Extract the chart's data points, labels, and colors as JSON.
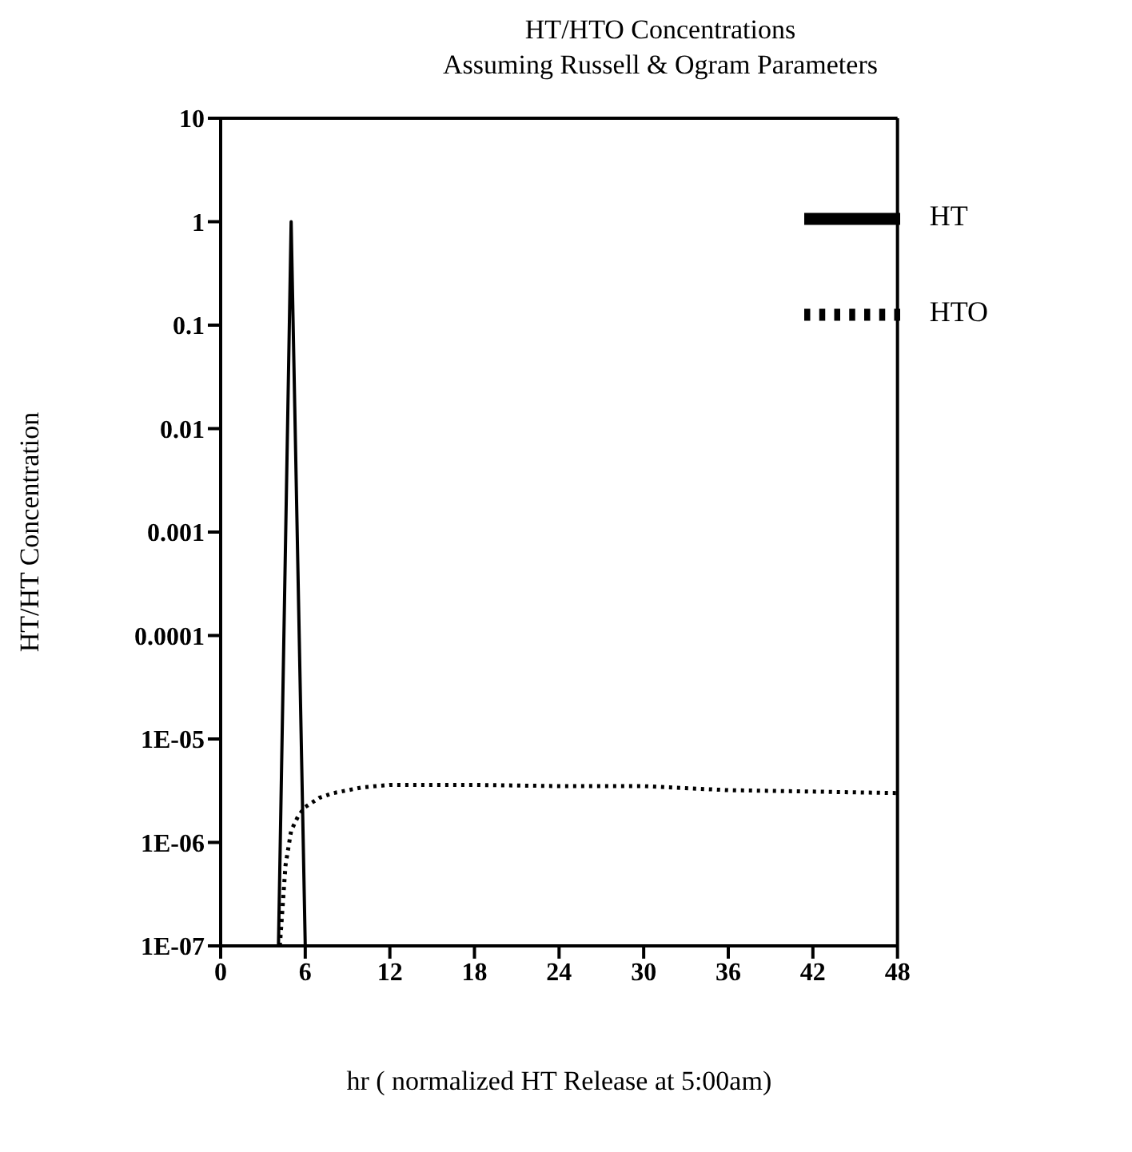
{
  "chart_data": {
    "type": "line",
    "title": "HT/HTO Concentrations",
    "subtitle": "Assuming Russell & Ogram Parameters",
    "xlabel": "hr ( normalized HT Release at 5:00am)",
    "ylabel": "HT/HT Concentration",
    "log": "y",
    "xlim": [
      0,
      48
    ],
    "xticks": [
      0,
      6,
      12,
      18,
      24,
      30,
      36,
      42,
      48
    ],
    "ylim": [
      1e-07,
      10
    ],
    "yticks": [
      10,
      1,
      0.1,
      0.01,
      0.001,
      0.0001,
      {
        "value": 1e-05,
        "label": "1E-05"
      },
      {
        "value": 1e-06,
        "label": "1E-06"
      },
      {
        "value": 1e-07,
        "label": "1E-07"
      }
    ],
    "grid": false,
    "legend": "top right",
    "series": [
      {
        "name": "HT",
        "color": "#000000",
        "line_style": "solid",
        "x": [
          4.1,
          5,
          6
        ],
        "values": [
          1e-07,
          1,
          1e-07
        ]
      },
      {
        "name": "HTO",
        "color": "#000000",
        "line_style": "dotted",
        "x": [
          4.2,
          4.6,
          5,
          5.5,
          6,
          7,
          8,
          10,
          12,
          18,
          24,
          30,
          36,
          42,
          48
        ],
        "values": [
          1e-07,
          6e-07,
          1.3e-06,
          1.8e-06,
          2.2e-06,
          2.7e-06,
          3e-06,
          3.4e-06,
          3.6e-06,
          3.6e-06,
          3.5e-06,
          3.5e-06,
          3.2e-06,
          3.1e-06,
          3e-06
        ]
      }
    ]
  }
}
